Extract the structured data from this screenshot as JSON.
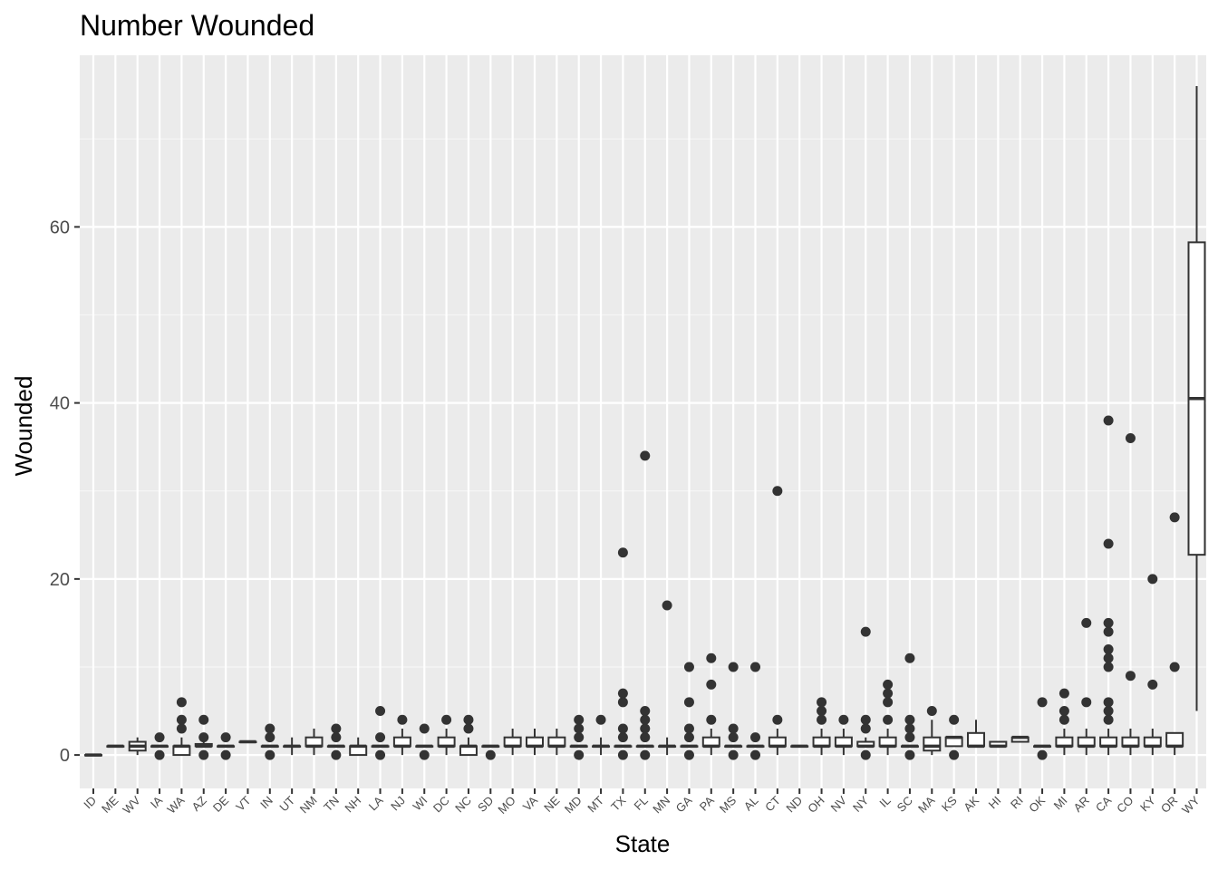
{
  "chart_data": {
    "type": "boxplot",
    "title": "Number Wounded",
    "xlabel": "State",
    "ylabel": "Wounded",
    "ylim": [
      -3.8,
      79.5
    ],
    "yticks": [
      0,
      20,
      40,
      60
    ],
    "grid": true,
    "colors": {
      "panel": "#ebebeb",
      "grid_major": "#ffffff",
      "grid_minor": "#f5f5f5",
      "box": "#333333",
      "box_fill": "#ffffff",
      "outlier": "#333333"
    },
    "categories": [
      "ID",
      "ME",
      "WV",
      "IA",
      "WA",
      "AZ",
      "DE",
      "VT",
      "IN",
      "UT",
      "NM",
      "TN",
      "NH",
      "LA",
      "NJ",
      "WI",
      "DC",
      "NC",
      "SD",
      "MO",
      "VA",
      "NE",
      "MD",
      "MT",
      "TX",
      "FL",
      "MN",
      "GA",
      "PA",
      "MS",
      "AL",
      "CT",
      "ND",
      "OH",
      "NV",
      "NY",
      "IL",
      "SC",
      "MA",
      "KS",
      "AK",
      "HI",
      "RI",
      "OK",
      "MI",
      "AR",
      "CA",
      "CO",
      "KY",
      "OR",
      "WY"
    ],
    "boxes": [
      {
        "state": "ID",
        "q1": 0,
        "median": 0,
        "q3": 0,
        "lo": 0,
        "hi": 0,
        "outliers": []
      },
      {
        "state": "ME",
        "q1": 1,
        "median": 1,
        "q3": 1,
        "lo": 1,
        "hi": 1,
        "outliers": []
      },
      {
        "state": "WV",
        "q1": 0.5,
        "median": 1,
        "q3": 1.5,
        "lo": 0,
        "hi": 2,
        "outliers": []
      },
      {
        "state": "IA",
        "q1": 1,
        "median": 1,
        "q3": 1,
        "lo": 1,
        "hi": 1,
        "outliers": [
          0,
          2
        ]
      },
      {
        "state": "WA",
        "q1": 0,
        "median": 1,
        "q3": 1,
        "lo": 0,
        "hi": 2,
        "outliers": [
          3,
          4,
          6
        ]
      },
      {
        "state": "AZ",
        "q1": 1,
        "median": 1,
        "q3": 1.25,
        "lo": 1,
        "hi": 1.5,
        "outliers": [
          0,
          2,
          4
        ]
      },
      {
        "state": "DE",
        "q1": 1,
        "median": 1,
        "q3": 1,
        "lo": 1,
        "hi": 1,
        "outliers": [
          0,
          2
        ]
      },
      {
        "state": "VT",
        "q1": 1.5,
        "median": 1.5,
        "q3": 1.5,
        "lo": 1.5,
        "hi": 1.5,
        "outliers": []
      },
      {
        "state": "IN",
        "q1": 1,
        "median": 1,
        "q3": 1,
        "lo": 1,
        "hi": 1,
        "outliers": [
          0,
          2,
          3
        ]
      },
      {
        "state": "UT",
        "q1": 1,
        "median": 1,
        "q3": 1,
        "lo": 0,
        "hi": 2,
        "outliers": []
      },
      {
        "state": "NM",
        "q1": 1,
        "median": 1,
        "q3": 2,
        "lo": 0,
        "hi": 3,
        "outliers": []
      },
      {
        "state": "TN",
        "q1": 1,
        "median": 1,
        "q3": 1,
        "lo": 1,
        "hi": 1,
        "outliers": [
          0,
          2,
          3
        ]
      },
      {
        "state": "NH",
        "q1": 0,
        "median": 1,
        "q3": 1,
        "lo": 0,
        "hi": 2,
        "outliers": []
      },
      {
        "state": "LA",
        "q1": 1,
        "median": 1,
        "q3": 1,
        "lo": 1,
        "hi": 1,
        "outliers": [
          0,
          2,
          5
        ]
      },
      {
        "state": "NJ",
        "q1": 1,
        "median": 1,
        "q3": 2,
        "lo": 0,
        "hi": 3,
        "outliers": [
          4
        ]
      },
      {
        "state": "WI",
        "q1": 1,
        "median": 1,
        "q3": 1,
        "lo": 1,
        "hi": 1,
        "outliers": [
          0,
          3
        ]
      },
      {
        "state": "DC",
        "q1": 1,
        "median": 1,
        "q3": 2,
        "lo": 0,
        "hi": 3,
        "outliers": [
          4
        ]
      },
      {
        "state": "NC",
        "q1": 0,
        "median": 1,
        "q3": 1,
        "lo": 0,
        "hi": 2,
        "outliers": [
          3,
          4
        ]
      },
      {
        "state": "SD",
        "q1": 1,
        "median": 1,
        "q3": 1,
        "lo": 1,
        "hi": 1,
        "outliers": [
          0
        ]
      },
      {
        "state": "MO",
        "q1": 1,
        "median": 1,
        "q3": 2,
        "lo": 0,
        "hi": 3,
        "outliers": []
      },
      {
        "state": "VA",
        "q1": 1,
        "median": 1,
        "q3": 2,
        "lo": 0,
        "hi": 3,
        "outliers": []
      },
      {
        "state": "NE",
        "q1": 1,
        "median": 1,
        "q3": 2,
        "lo": 0,
        "hi": 3,
        "outliers": []
      },
      {
        "state": "MD",
        "q1": 1,
        "median": 1,
        "q3": 1,
        "lo": 1,
        "hi": 1,
        "outliers": [
          0,
          2,
          3,
          4
        ]
      },
      {
        "state": "MT",
        "q1": 1,
        "median": 1,
        "q3": 1,
        "lo": 0,
        "hi": 2,
        "outliers": [
          4
        ]
      },
      {
        "state": "TX",
        "q1": 1,
        "median": 1,
        "q3": 1,
        "lo": 1,
        "hi": 1,
        "outliers": [
          0,
          2,
          3,
          6,
          7,
          23
        ]
      },
      {
        "state": "FL",
        "q1": 1,
        "median": 1,
        "q3": 1,
        "lo": 1,
        "hi": 1,
        "outliers": [
          0,
          2,
          3,
          4,
          5,
          34
        ]
      },
      {
        "state": "MN",
        "q1": 1,
        "median": 1,
        "q3": 1,
        "lo": 0,
        "hi": 2,
        "outliers": [
          17
        ]
      },
      {
        "state": "GA",
        "q1": 1,
        "median": 1,
        "q3": 1,
        "lo": 1,
        "hi": 1,
        "outliers": [
          0,
          2,
          3,
          6,
          10
        ]
      },
      {
        "state": "PA",
        "q1": 1,
        "median": 1,
        "q3": 2,
        "lo": 0,
        "hi": 3,
        "outliers": [
          4,
          8,
          11
        ]
      },
      {
        "state": "MS",
        "q1": 1,
        "median": 1,
        "q3": 1,
        "lo": 1,
        "hi": 1,
        "outliers": [
          0,
          2,
          3,
          10
        ]
      },
      {
        "state": "AL",
        "q1": 1,
        "median": 1,
        "q3": 1,
        "lo": 1,
        "hi": 1,
        "outliers": [
          0,
          2,
          10
        ]
      },
      {
        "state": "CT",
        "q1": 1,
        "median": 1,
        "q3": 2,
        "lo": 0,
        "hi": 3,
        "outliers": [
          4,
          30
        ]
      },
      {
        "state": "ND",
        "q1": 1,
        "median": 1,
        "q3": 1,
        "lo": 1,
        "hi": 1,
        "outliers": []
      },
      {
        "state": "OH",
        "q1": 1,
        "median": 1,
        "q3": 2,
        "lo": 0,
        "hi": 3,
        "outliers": [
          4,
          5,
          6
        ]
      },
      {
        "state": "NV",
        "q1": 1,
        "median": 1,
        "q3": 2,
        "lo": 0,
        "hi": 3,
        "outliers": [
          4
        ]
      },
      {
        "state": "NY",
        "q1": 1,
        "median": 1,
        "q3": 1.5,
        "lo": 1,
        "hi": 2,
        "outliers": [
          0,
          3,
          4,
          14
        ]
      },
      {
        "state": "IL",
        "q1": 1,
        "median": 1,
        "q3": 2,
        "lo": 0,
        "hi": 3,
        "outliers": [
          4,
          6,
          7,
          8
        ]
      },
      {
        "state": "SC",
        "q1": 1,
        "median": 1,
        "q3": 1,
        "lo": 1,
        "hi": 1,
        "outliers": [
          0,
          2,
          3,
          4,
          11
        ]
      },
      {
        "state": "MA",
        "q1": 0.5,
        "median": 1,
        "q3": 2,
        "lo": 0,
        "hi": 4,
        "outliers": [
          5
        ]
      },
      {
        "state": "KS",
        "q1": 1,
        "median": 2,
        "q3": 2,
        "lo": 1,
        "hi": 2,
        "outliers": [
          0,
          4
        ]
      },
      {
        "state": "AK",
        "q1": 1,
        "median": 1,
        "q3": 2.5,
        "lo": 1,
        "hi": 4,
        "outliers": []
      },
      {
        "state": "HI",
        "q1": 1,
        "median": 1,
        "q3": 1.5,
        "lo": 1,
        "hi": 1.5,
        "outliers": []
      },
      {
        "state": "RI",
        "q1": 1.5,
        "median": 2,
        "q3": 2,
        "lo": 1.5,
        "hi": 2,
        "outliers": []
      },
      {
        "state": "OK",
        "q1": 1,
        "median": 1,
        "q3": 1,
        "lo": 1,
        "hi": 1,
        "outliers": [
          0,
          6
        ]
      },
      {
        "state": "MI",
        "q1": 1,
        "median": 1,
        "q3": 2,
        "lo": 0,
        "hi": 3,
        "outliers": [
          4,
          5,
          7
        ]
      },
      {
        "state": "AR",
        "q1": 1,
        "median": 1,
        "q3": 2,
        "lo": 0,
        "hi": 3,
        "outliers": [
          6,
          15
        ]
      },
      {
        "state": "CA",
        "q1": 1,
        "median": 1,
        "q3": 2,
        "lo": 0,
        "hi": 3,
        "outliers": [
          4,
          5,
          6,
          10,
          11,
          12,
          14,
          15,
          24,
          38
        ]
      },
      {
        "state": "CO",
        "q1": 1,
        "median": 1,
        "q3": 2,
        "lo": 0,
        "hi": 3,
        "outliers": [
          9,
          36
        ]
      },
      {
        "state": "KY",
        "q1": 1,
        "median": 1,
        "q3": 2,
        "lo": 0,
        "hi": 3,
        "outliers": [
          8,
          20
        ]
      },
      {
        "state": "OR",
        "q1": 1,
        "median": 1,
        "q3": 2.5,
        "lo": 0,
        "hi": 2.5,
        "outliers": [
          10,
          27
        ]
      },
      {
        "state": "WY",
        "q1": 22.75,
        "median": 40.5,
        "q3": 58.25,
        "lo": 5,
        "hi": 76,
        "outliers": []
      }
    ]
  }
}
